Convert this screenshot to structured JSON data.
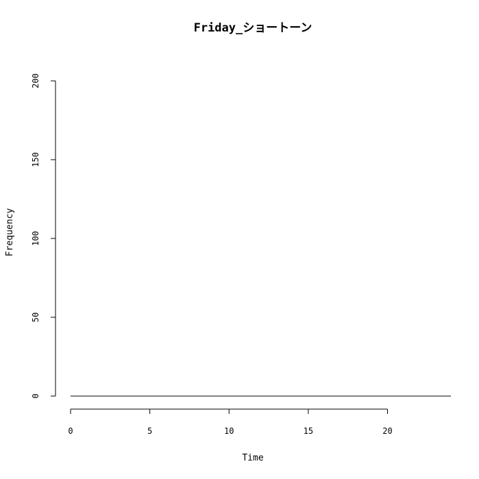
{
  "chart_data": {
    "type": "line",
    "title": "Friday_ショートーン",
    "xlabel": "Time",
    "ylabel": "Frequency",
    "xlim": [
      0,
      24
    ],
    "ylim": [
      0,
      200
    ],
    "x_ticks": [
      0,
      5,
      10,
      15,
      20
    ],
    "y_ticks": [
      0,
      50,
      100,
      150,
      200
    ],
    "grid": false,
    "series": [
      {
        "x": [
          0,
          1,
          2,
          3,
          4,
          5,
          6,
          7,
          8,
          9,
          10,
          11,
          12,
          13,
          14,
          15,
          16,
          17,
          18,
          19,
          20,
          21,
          22,
          23,
          24
        ],
        "values": [
          0,
          0,
          0,
          0,
          0,
          0,
          0,
          0,
          0,
          0,
          0,
          0,
          0,
          0,
          0,
          0,
          0,
          0,
          0,
          0,
          0,
          0,
          0,
          0,
          0
        ],
        "color": "#000000"
      }
    ]
  }
}
